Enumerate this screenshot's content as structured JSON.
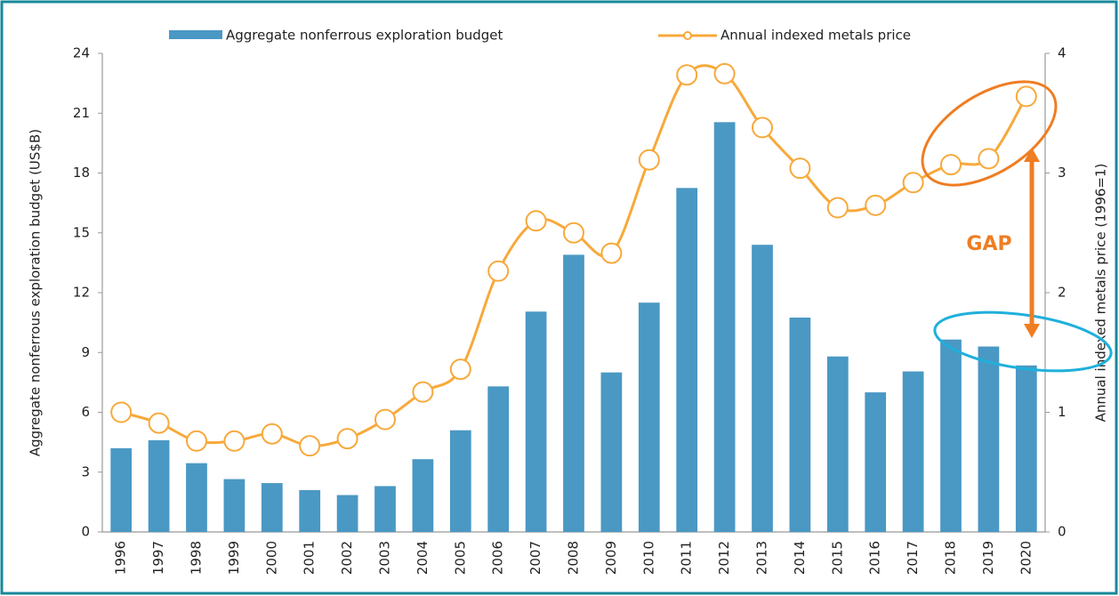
{
  "chart_data": {
    "type": "bar-line",
    "categories": [
      "1996",
      "1997",
      "1998",
      "1999",
      "2000",
      "2001",
      "2002",
      "2003",
      "2004",
      "2005",
      "2006",
      "2007",
      "2008",
      "2009",
      "2010",
      "2011",
      "2012",
      "2013",
      "2014",
      "2015",
      "2016",
      "2017",
      "2018",
      "2019",
      "2020"
    ],
    "series": [
      {
        "name": "Aggregate nonferrous exploration budget",
        "type": "bar",
        "color": "#4a98c4",
        "values": [
          4.2,
          4.6,
          3.45,
          2.65,
          2.45,
          2.1,
          1.85,
          2.3,
          3.65,
          5.1,
          7.3,
          11.05,
          13.9,
          8.0,
          11.5,
          17.25,
          20.55,
          14.4,
          10.75,
          8.8,
          7.0,
          8.05,
          9.65,
          9.3,
          8.35
        ]
      },
      {
        "name": "Annual indexed metals price",
        "type": "line",
        "axis": "y2",
        "color": "#f7a93b",
        "values": [
          1.0,
          0.91,
          0.76,
          0.76,
          0.82,
          0.72,
          0.78,
          0.94,
          1.17,
          1.36,
          2.18,
          2.6,
          2.5,
          2.33,
          3.11,
          3.82,
          3.83,
          3.38,
          3.04,
          2.71,
          2.73,
          2.92,
          3.07,
          3.12,
          3.64
        ]
      }
    ],
    "ylabel": "Aggregate nonferrous exploration budget (US$B)",
    "y2label": "Annual indexed metals price  (1996=1)",
    "ylim": [
      0,
      24
    ],
    "yticks": [
      0,
      3,
      6,
      9,
      12,
      15,
      18,
      21,
      24
    ],
    "y2lim": [
      0,
      4
    ],
    "y2ticks": [
      0,
      1,
      2,
      3,
      4
    ],
    "annotation": "GAP",
    "legend": "top"
  }
}
